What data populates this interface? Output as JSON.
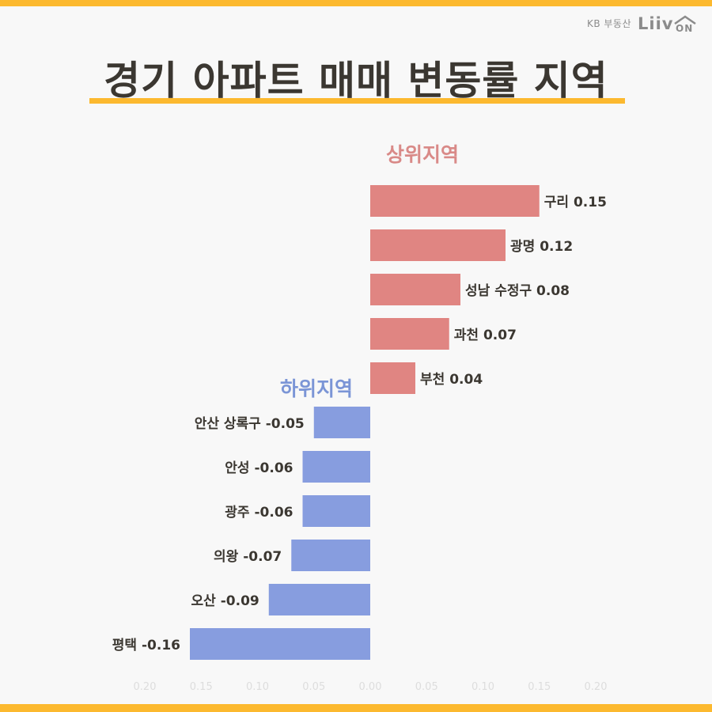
{
  "brand": {
    "sub": "KB 부동산",
    "logo_text": "Liiv ON"
  },
  "title": "경기 아파트 매매 변동률 지역",
  "groups": {
    "top_label": "상위지역",
    "bottom_label": "하위지역"
  },
  "colors": {
    "accent": "#fcb92f",
    "top_bar": "#e08582",
    "bottom_bar": "#879ddf",
    "text": "#3b3731",
    "tick": "#dddddd"
  },
  "chart_data": {
    "type": "bar",
    "orientation": "horizontal",
    "title": "경기 아파트 매매 변동률 지역",
    "xlabel": "",
    "ylabel": "",
    "xlim": [
      -0.2,
      0.2
    ],
    "xticks": [
      "0.20",
      "0.15",
      "0.10",
      "0.05",
      "0.00",
      "0.05",
      "0.10",
      "0.15",
      "0.20"
    ],
    "categories": [
      "구리",
      "광명",
      "성남 수정구",
      "과천",
      "부천",
      "안산 상록구",
      "안성",
      "광주",
      "의왕",
      "오산",
      "평택"
    ],
    "values": [
      0.15,
      0.12,
      0.08,
      0.07,
      0.04,
      -0.05,
      -0.06,
      -0.06,
      -0.07,
      -0.09,
      -0.16
    ],
    "data_labels": [
      "0.15",
      "0.12",
      "0.08",
      "0.07",
      "0.04",
      "-0.05",
      "-0.06",
      "-0.06",
      "-0.07",
      "-0.09",
      "-0.16"
    ],
    "grid": false,
    "legend": "none"
  }
}
